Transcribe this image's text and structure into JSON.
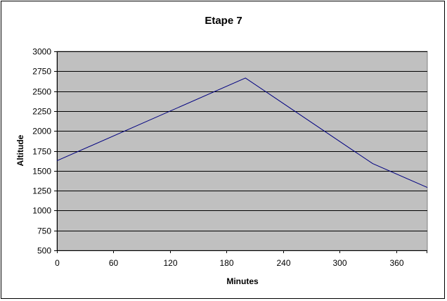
{
  "chart_data": {
    "type": "line",
    "title": "Etape 7",
    "xlabel": "Minutes",
    "ylabel": "Altitude",
    "xlim": [
      0,
      393
    ],
    "ylim": [
      500,
      3000
    ],
    "x_ticks": [
      0,
      60,
      120,
      180,
      240,
      300,
      360
    ],
    "y_ticks": [
      500,
      750,
      1000,
      1250,
      1500,
      1750,
      2000,
      2250,
      2500,
      2750,
      3000
    ],
    "grid": "horizontal",
    "legend": "none",
    "colors": {
      "plot_background": "#c0c0c0",
      "line": "#000080",
      "gridline": "#000000"
    },
    "series": [
      {
        "x": [
          0,
          200,
          335,
          393
        ],
        "y": [
          1625,
          2665,
          1590,
          1290
        ]
      }
    ]
  }
}
